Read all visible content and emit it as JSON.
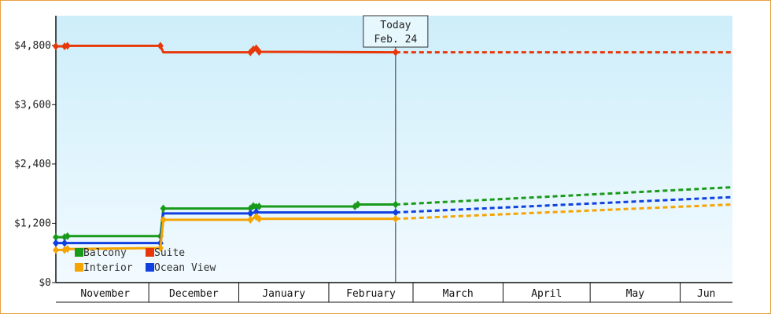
{
  "chart_data": {
    "type": "line",
    "title": "",
    "xlabel": "",
    "ylabel": "",
    "x_start": "2023-10-30",
    "x_end": "2024-06-19",
    "ylim": [
      0,
      5400
    ],
    "yticks": [
      0,
      1200,
      2400,
      3600,
      4800
    ],
    "ytick_labels": [
      "$0",
      "$1,200",
      "$2,400",
      "$3,600",
      "$4,800"
    ],
    "months": [
      {
        "label": "November",
        "start": "2023-11-01"
      },
      {
        "label": "December",
        "start": "2023-12-01"
      },
      {
        "label": "January",
        "start": "2024-01-01"
      },
      {
        "label": "February",
        "start": "2024-02-01"
      },
      {
        "label": "March",
        "start": "2024-03-01"
      },
      {
        "label": "April",
        "start": "2024-04-01"
      },
      {
        "label": "May",
        "start": "2024-05-01"
      },
      {
        "label": "Jun",
        "start": "2024-06-01"
      }
    ],
    "today": {
      "label": "Today",
      "date_label": "Feb. 24",
      "date": "2024-02-24"
    },
    "grid": false,
    "legend_position": "bottom-left",
    "series": [
      {
        "name": "Suite",
        "color": "#e8380a",
        "values": [
          {
            "x": "2023-10-30",
            "y": 4780,
            "m": true
          },
          {
            "x": "2023-11-02",
            "y": 4780,
            "m": true
          },
          {
            "x": "2023-11-03",
            "y": 4790,
            "m": true
          },
          {
            "x": "2023-12-05",
            "y": 4790,
            "m": true
          },
          {
            "x": "2023-12-06",
            "y": 4660
          },
          {
            "x": "2024-01-05",
            "y": 4660,
            "m": true
          },
          {
            "x": "2024-01-06",
            "y": 4720,
            "m": true
          },
          {
            "x": "2024-01-07",
            "y": 4740,
            "m": true
          },
          {
            "x": "2024-01-08",
            "y": 4670,
            "m": true
          },
          {
            "x": "2024-02-24",
            "y": 4660,
            "m": true
          }
        ],
        "projection": [
          {
            "x": "2024-02-24",
            "y": 4660
          },
          {
            "x": "2024-06-19",
            "y": 4660
          }
        ]
      },
      {
        "name": "Balcony",
        "color": "#1a9a1a",
        "values": [
          {
            "x": "2023-10-30",
            "y": 920,
            "m": true
          },
          {
            "x": "2023-11-02",
            "y": 920,
            "m": true
          },
          {
            "x": "2023-11-03",
            "y": 940,
            "m": true
          },
          {
            "x": "2023-12-05",
            "y": 940,
            "m": true
          },
          {
            "x": "2023-12-06",
            "y": 1500,
            "m": true
          },
          {
            "x": "2024-01-05",
            "y": 1500,
            "m": true
          },
          {
            "x": "2024-01-06",
            "y": 1550,
            "m": true
          },
          {
            "x": "2024-01-07",
            "y": 1530,
            "m": true
          },
          {
            "x": "2024-01-08",
            "y": 1540,
            "m": true
          },
          {
            "x": "2024-02-10",
            "y": 1540,
            "m": true
          },
          {
            "x": "2024-02-11",
            "y": 1580,
            "m": true
          },
          {
            "x": "2024-02-24",
            "y": 1580,
            "m": true
          }
        ],
        "projection": [
          {
            "x": "2024-02-24",
            "y": 1580
          },
          {
            "x": "2024-06-19",
            "y": 1930
          }
        ]
      },
      {
        "name": "Ocean View",
        "color": "#1040e0",
        "values": [
          {
            "x": "2023-10-30",
            "y": 800,
            "m": true
          },
          {
            "x": "2023-11-02",
            "y": 800,
            "m": true
          },
          {
            "x": "2023-12-05",
            "y": 800,
            "m": true
          },
          {
            "x": "2023-12-06",
            "y": 1400
          },
          {
            "x": "2024-01-05",
            "y": 1400,
            "m": true
          },
          {
            "x": "2024-01-07",
            "y": 1430,
            "m": true
          },
          {
            "x": "2024-01-08",
            "y": 1420
          },
          {
            "x": "2024-02-24",
            "y": 1420,
            "m": true
          }
        ],
        "projection": [
          {
            "x": "2024-02-24",
            "y": 1420
          },
          {
            "x": "2024-06-19",
            "y": 1730
          }
        ]
      },
      {
        "name": "Interior",
        "color": "#f5a400",
        "values": [
          {
            "x": "2023-10-30",
            "y": 660,
            "m": true
          },
          {
            "x": "2023-11-02",
            "y": 660,
            "m": true
          },
          {
            "x": "2023-11-03",
            "y": 680,
            "m": true
          },
          {
            "x": "2023-12-05",
            "y": 700,
            "m": true
          },
          {
            "x": "2023-12-06",
            "y": 1270,
            "m": true
          },
          {
            "x": "2024-01-05",
            "y": 1270,
            "m": true
          },
          {
            "x": "2024-01-07",
            "y": 1330,
            "m": true
          },
          {
            "x": "2024-01-08",
            "y": 1290,
            "m": true
          },
          {
            "x": "2024-02-24",
            "y": 1290,
            "m": true
          }
        ],
        "projection": [
          {
            "x": "2024-02-24",
            "y": 1290
          },
          {
            "x": "2024-06-19",
            "y": 1580
          }
        ]
      }
    ],
    "legend": [
      {
        "name": "Balcony",
        "color": "#1a9a1a"
      },
      {
        "name": "Suite",
        "color": "#e8380a"
      },
      {
        "name": "Interior",
        "color": "#f5a400"
      },
      {
        "name": "Ocean View",
        "color": "#1040e0"
      }
    ]
  }
}
